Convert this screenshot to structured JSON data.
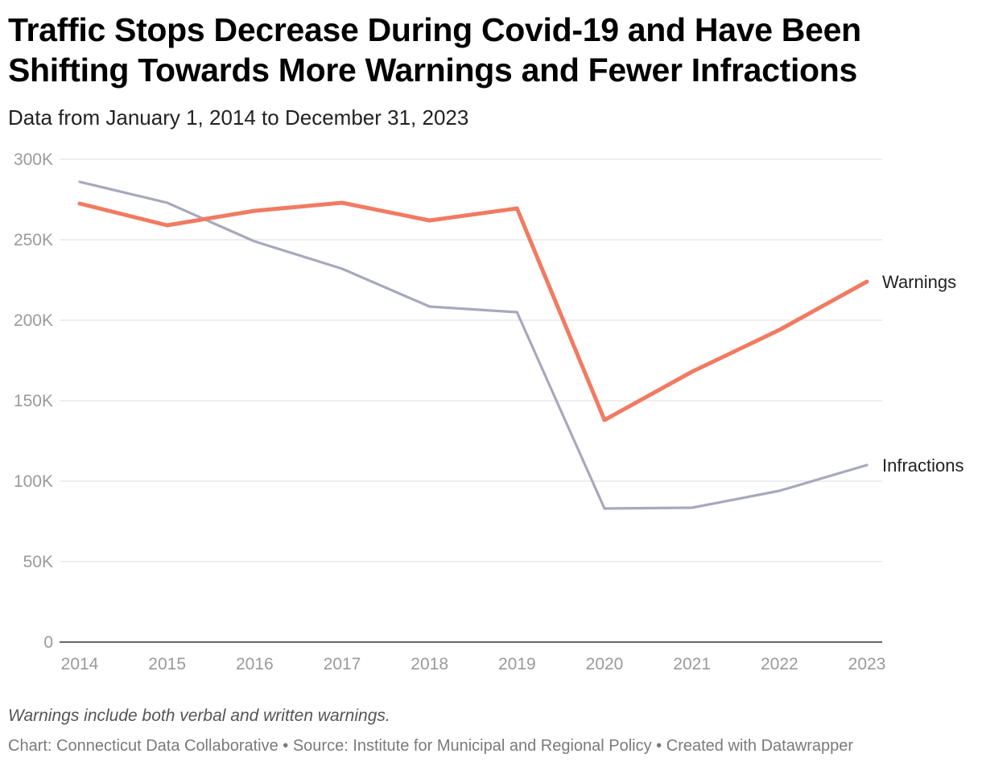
{
  "chart_data": {
    "type": "line",
    "title": "Traffic Stops Decrease During Covid-19 and Have Been Shifting Towards More Warnings and Fewer Infractions",
    "subtitle": "Data from January 1, 2014 to December 31, 2023",
    "x": [
      "2014",
      "2015",
      "2016",
      "2017",
      "2018",
      "2019",
      "2020",
      "2021",
      "2022",
      "2023"
    ],
    "ylim": [
      0,
      300000
    ],
    "yticks": [
      0,
      50000,
      100000,
      150000,
      200000,
      250000,
      300000
    ],
    "ytick_labels": [
      "0",
      "50K",
      "100K",
      "150K",
      "200K",
      "250K",
      "300K"
    ],
    "grid": true,
    "legend": "direct labels at line ends",
    "series": [
      {
        "name": "Warnings",
        "color": "#f07b62",
        "values": [
          272500,
          259000,
          268000,
          273000,
          262000,
          269500,
          138000,
          168000,
          194000,
          224000
        ]
      },
      {
        "name": "Infractions",
        "color": "#a7a9bc",
        "values": [
          286000,
          273000,
          249000,
          232000,
          208500,
          205000,
          83000,
          83500,
          94000,
          110000
        ]
      }
    ],
    "note": "Warnings include both verbal and written warnings.",
    "footer": "Chart: Connecticut Data Collaborative • Source: Institute for Municipal and Regional Policy • Created with Datawrapper"
  }
}
